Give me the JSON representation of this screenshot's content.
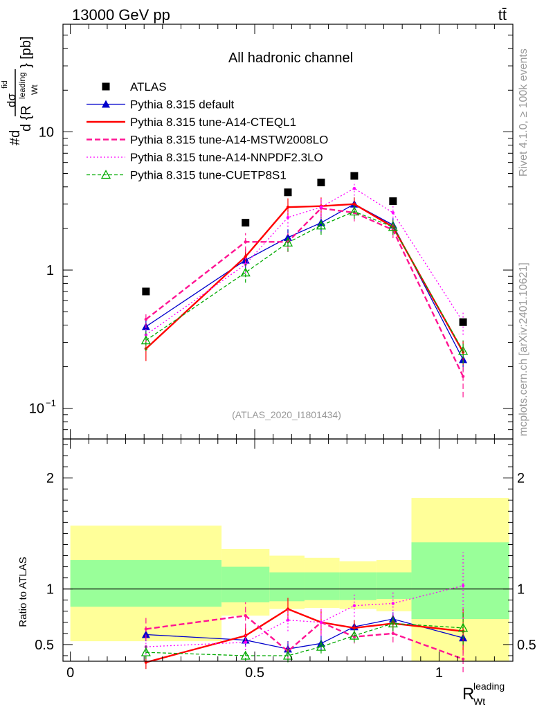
{
  "header": {
    "energy_label": "13000 GeV pp",
    "process_label": "tt̄"
  },
  "side_labels": {
    "rivet": "Rivet 4.1.0, ≥ 100k events",
    "mcplots": "mcplots.cern.ch [arXiv:2401.10621]"
  },
  "chart_data": [
    {
      "type": "line",
      "panel": "main",
      "title": "All hadronic channel",
      "analysis_label": "(ATLAS_2020_I1801434)",
      "ylabel": "#d σ^{fid} / d {R_{Wt}^{leading}} [pb]",
      "yscale": "log",
      "ylim": [
        0.06,
        60
      ],
      "xlim": [
        -0.02,
        1.2
      ],
      "y_tick_labels": [
        {
          "value": 0.1,
          "base": "10",
          "exp": "−1"
        },
        {
          "value": 1,
          "base": "1",
          "exp": ""
        },
        {
          "value": 10,
          "base": "10",
          "exp": ""
        }
      ],
      "x": [
        0.205,
        0.475,
        0.59,
        0.68,
        0.77,
        0.875,
        1.065
      ],
      "data": {
        "name": "ATLAS",
        "values": [
          0.7,
          2.2,
          3.65,
          4.3,
          4.8,
          3.15,
          0.42
        ],
        "color": "#000000"
      },
      "series": [
        {
          "name": "Pythia 8.315 default",
          "color": "#0000cc",
          "dash": "",
          "marker": "triangle-filled",
          "values": [
            0.39,
            1.18,
            1.72,
            2.2,
            3.0,
            2.12,
            0.225
          ],
          "errors": [
            0.06,
            0.15,
            0.25,
            0.35,
            0.35,
            0.25,
            0.04
          ]
        },
        {
          "name": "Pythia 8.315 tune-A14-CTEQL1",
          "color": "#ff0000",
          "dash": "",
          "marker": "none",
          "values": [
            0.27,
            1.25,
            2.85,
            2.9,
            3.0,
            2.05,
            0.255
          ],
          "errors": [
            0.05,
            0.18,
            0.45,
            0.45,
            0.35,
            0.25,
            0.05
          ]
        },
        {
          "name": "Pythia 8.315 tune-A14-MSTW2008LO",
          "color": "#ff1493",
          "dash": "8,4",
          "marker": "none",
          "values": [
            0.44,
            1.6,
            1.6,
            2.8,
            2.6,
            1.95,
            0.17
          ],
          "errors": [
            0.06,
            0.25,
            0.25,
            0.45,
            0.35,
            0.25,
            0.05
          ]
        },
        {
          "name": "Pythia 8.315 tune-A14-NNPDF2.3LO",
          "color": "#ff00ff",
          "dash": "2,3",
          "marker": "none",
          "values": [
            0.34,
            1.1,
            2.4,
            2.85,
            3.9,
            2.6,
            0.42
          ],
          "errors": [
            0.05,
            0.15,
            0.35,
            0.45,
            0.45,
            0.35,
            0.08
          ]
        },
        {
          "name": "Pythia 8.315 tune-CUETP8S1",
          "color": "#00aa00",
          "dash": "5,3",
          "marker": "triangle-open",
          "values": [
            0.31,
            0.96,
            1.58,
            2.1,
            2.65,
            2.05,
            0.26
          ],
          "errors": [
            0.05,
            0.15,
            0.22,
            0.3,
            0.3,
            0.25,
            0.05
          ]
        }
      ],
      "legend": {
        "position": "top-left",
        "entries": [
          "ATLAS",
          "Pythia 8.315 default",
          "Pythia 8.315 tune-A14-CTEQL1",
          "Pythia 8.315 tune-A14-MSTW2008LO",
          "Pythia 8.315 tune-A14-NNPDF2.3LO",
          "Pythia 8.315 tune-CUETP8S1"
        ]
      }
    },
    {
      "type": "line",
      "panel": "ratio",
      "ylabel": "Ratio to ATLAS",
      "xlabel": "R_{Wt}^{leading}",
      "ylim": [
        0.35,
        2.35
      ],
      "xlim": [
        -0.02,
        1.2
      ],
      "y_tick_labels": [
        "0.5",
        "1",
        "2"
      ],
      "y_tick_values": [
        0.5,
        1,
        2
      ],
      "x_tick_labels": [
        "0",
        "0.5",
        "1"
      ],
      "x_tick_values": [
        0,
        0.5,
        1
      ],
      "uncertainty_bands": [
        {
          "x": [
            0.0,
            0.41
          ],
          "inner": [
            0.84,
            1.26
          ],
          "outer": [
            0.53,
            1.57
          ]
        },
        {
          "x": [
            0.41,
            0.54
          ],
          "inner": [
            0.88,
            1.2
          ],
          "outer": [
            0.76,
            1.36
          ]
        },
        {
          "x": [
            0.54,
            0.635
          ],
          "inner": [
            0.89,
            1.15
          ],
          "outer": [
            0.82,
            1.3
          ]
        },
        {
          "x": [
            0.635,
            0.73
          ],
          "inner": [
            0.9,
            1.15
          ],
          "outer": [
            0.83,
            1.28
          ]
        },
        {
          "x": [
            0.73,
            0.83
          ],
          "inner": [
            0.9,
            1.15
          ],
          "outer": [
            0.82,
            1.25
          ]
        },
        {
          "x": [
            0.83,
            0.925
          ],
          "inner": [
            0.91,
            1.15
          ],
          "outer": [
            0.8,
            1.26
          ]
        },
        {
          "x": [
            0.925,
            1.19
          ],
          "inner": [
            0.73,
            1.42
          ],
          "outer": [
            0.0,
            1.82
          ]
        }
      ],
      "x": [
        0.205,
        0.475,
        0.59,
        0.68,
        0.77,
        0.875,
        1.065
      ],
      "series": [
        {
          "name": "Pythia 8.315 default",
          "values": [
            0.59,
            0.54,
            0.46,
            0.51,
            0.66,
            0.73,
            0.56
          ],
          "errors": [
            0.06,
            0.06,
            0.07,
            0.07,
            0.06,
            0.06,
            0.08
          ]
        },
        {
          "name": "Pythia 8.315 tune-A14-CTEQL1",
          "values": [
            0.34,
            0.58,
            0.82,
            0.7,
            0.65,
            0.69,
            0.62
          ],
          "errors": [
            0.06,
            0.07,
            0.1,
            0.1,
            0.07,
            0.07,
            0.2
          ]
        },
        {
          "name": "Pythia 8.315 tune-A14-MSTW2008LO",
          "values": [
            0.64,
            0.76,
            0.44,
            0.7,
            0.57,
            0.6,
            0.37
          ],
          "errors": [
            0.1,
            0.12,
            0.08,
            0.12,
            0.06,
            0.08,
            0.12
          ]
        },
        {
          "name": "Pythia 8.315 tune-A14-NNPDF2.3LO",
          "values": [
            0.48,
            0.52,
            0.72,
            0.7,
            0.85,
            0.87,
            1.03
          ],
          "errors": [
            0.07,
            0.07,
            0.1,
            0.12,
            0.1,
            0.1,
            0.3
          ]
        },
        {
          "name": "Pythia 8.315 tune-CUETP8S1",
          "values": [
            0.43,
            0.4,
            0.4,
            0.48,
            0.58,
            0.69,
            0.65
          ],
          "errors": [
            0.06,
            0.05,
            0.06,
            0.06,
            0.06,
            0.07,
            0.15
          ]
        }
      ]
    }
  ]
}
